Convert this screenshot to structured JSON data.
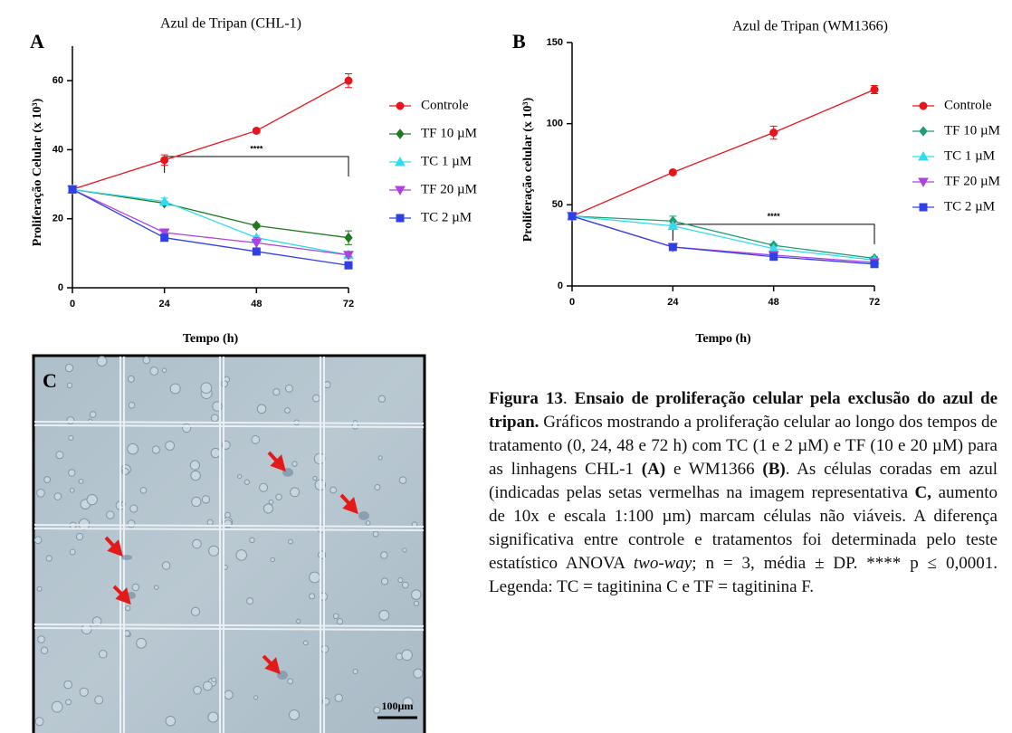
{
  "chart_data": [
    {
      "type": "line",
      "panel_label": "A",
      "title": "Azul de Tripan (CHL-1)",
      "x_label": "Tempo (h)",
      "y_label": "Proliferação Celular  (x 10³)",
      "x": [
        0,
        24,
        48,
        72
      ],
      "xlim": [
        0,
        72
      ],
      "xticks": [
        0,
        24,
        48,
        72
      ],
      "ylim": [
        0,
        70
      ],
      "yticks": [
        0,
        20,
        40,
        60
      ],
      "significance": {
        "label": "****",
        "x_start": 24,
        "x_end": 72,
        "y": 38
      },
      "series": [
        {
          "name": "Controle",
          "color": "#e8141b",
          "marker": "circle",
          "values": [
            28.5,
            37,
            45.5,
            60
          ],
          "errors": [
            1,
            1.5,
            0.5,
            2
          ]
        },
        {
          "name": "TF 10 µM",
          "color": "#1f7a1f",
          "marker": "diamond",
          "values": [
            28.5,
            24.5,
            18,
            14.5
          ],
          "errors": [
            1,
            0.5,
            0.5,
            2
          ]
        },
        {
          "name": "TC 1 µM",
          "color": "#30dcef",
          "marker": "triangle-up",
          "values": [
            28.5,
            25,
            14.5,
            9.5
          ],
          "errors": [
            1,
            1,
            0.5,
            0.5
          ]
        },
        {
          "name": "TF 20 µM",
          "color": "#b040e0",
          "marker": "triangle-down",
          "values": [
            28.5,
            16,
            13,
            9.5
          ],
          "errors": [
            1,
            0.5,
            1.5,
            0.5
          ]
        },
        {
          "name": "TC 2 µM",
          "color": "#3040e8",
          "marker": "square",
          "values": [
            28.5,
            14.5,
            10.5,
            6.5
          ],
          "errors": [
            1,
            1,
            0.5,
            1
          ]
        }
      ]
    },
    {
      "type": "line",
      "panel_label": "B",
      "title": "Azul de Tripan (WM1366)",
      "x_label": "Tempo (h)",
      "y_label": "Proliferação celular  (x 10³)",
      "x": [
        0,
        24,
        48,
        72
      ],
      "xlim": [
        0,
        72
      ],
      "xticks": [
        0,
        24,
        48,
        72
      ],
      "ylim": [
        0,
        150
      ],
      "yticks": [
        0,
        50,
        100,
        150
      ],
      "significance": {
        "label": "****",
        "x_start": 24,
        "x_end": 72,
        "y": 38
      },
      "series": [
        {
          "name": "Controle",
          "color": "#e8141b",
          "marker": "circle",
          "values": [
            43,
            70,
            94.5,
            121
          ],
          "errors": [
            2,
            1,
            4,
            2.5
          ]
        },
        {
          "name": "TF 10 µM",
          "color": "#1e9e70",
          "marker": "diamond",
          "values": [
            43,
            40,
            25,
            17
          ],
          "errors": [
            2,
            3,
            1,
            1
          ]
        },
        {
          "name": "TC 1 µM",
          "color": "#30dcef",
          "marker": "triangle-up",
          "values": [
            43,
            37,
            23,
            16
          ],
          "errors": [
            2,
            1,
            1,
            1
          ]
        },
        {
          "name": "TF 20 µM",
          "color": "#b040e0",
          "marker": "triangle-down",
          "values": [
            43,
            24,
            19,
            14.5
          ],
          "errors": [
            2,
            1,
            1,
            1
          ]
        },
        {
          "name": "TC 2 µM",
          "color": "#3040e8",
          "marker": "square",
          "values": [
            43,
            24,
            18,
            13.5
          ],
          "errors": [
            2,
            1,
            1,
            1
          ]
        }
      ]
    }
  ],
  "image": {
    "panel_label": "C",
    "scale_bar": "100µm"
  },
  "caption": {
    "parts": [
      {
        "text": "Figura 13",
        "style": "bold"
      },
      {
        "text": ". ",
        "style": "normal"
      },
      {
        "text": "Ensaio de proliferação celular pela exclusão do azul de tripan.",
        "style": "bold"
      },
      {
        "text": " Gráficos mostrando a proliferação celular ao longo dos tempos de tratamento (0, 24, 48 e 72 h) com TC (1 e 2 µM) e TF (10 e 20 µM) para as linhagens CHL-1 ",
        "style": "normal"
      },
      {
        "text": "(A)",
        "style": "bold"
      },
      {
        "text": " e WM1366 ",
        "style": "normal"
      },
      {
        "text": "(B)",
        "style": "bold"
      },
      {
        "text": ". As células coradas em azul (indicadas pelas setas vermelhas na imagem representativa ",
        "style": "normal"
      },
      {
        "text": "C,",
        "style": "bold"
      },
      {
        "text": " aumento de 10x e escala 1:100 µm) marcam células não viáveis. A diferença significativa entre controle e tratamentos foi determinada pelo teste estatístico ANOVA ",
        "style": "normal"
      },
      {
        "text": "two-way",
        "style": "italic"
      },
      {
        "text": "; n = 3, média ± DP. **** p ≤ 0,0001. Legenda: TC = tagitinina C e TF = tagitinina F.",
        "style": "normal"
      }
    ]
  }
}
